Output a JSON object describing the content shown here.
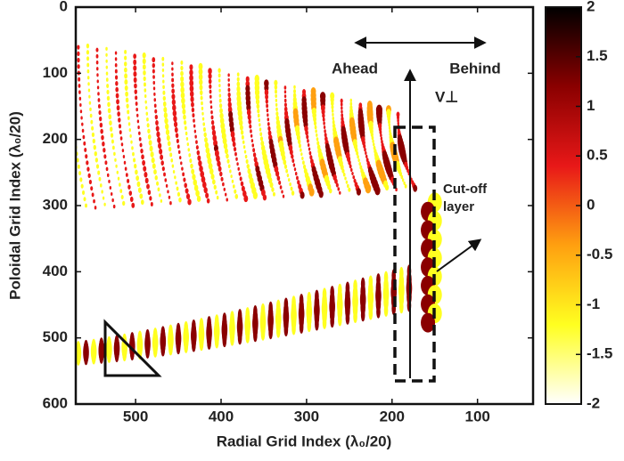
{
  "chart_data": {
    "type": "heatmap",
    "xlabel": "Radial Grid Index (λ₀/20)",
    "ylabel": "Poloidal Grid Index (λ₀/20)",
    "xlim": [
      570,
      35
    ],
    "xticks": [
      500,
      400,
      300,
      200,
      100
    ],
    "ylim": [
      0,
      600
    ],
    "yticks": [
      0,
      100,
      200,
      300,
      400,
      500,
      600
    ],
    "clim": [
      -2,
      2
    ],
    "cticks": [
      -2,
      -1.5,
      -1,
      -0.5,
      0,
      0.5,
      1,
      1.5,
      2
    ],
    "colormap": [
      "#ffffff",
      "#ffff20",
      "#ffa010",
      "#e81818",
      "#8a0000",
      "#000000"
    ],
    "annotations": [
      "Ahead",
      "Behind",
      "V⊥",
      "Cut-off",
      "layer"
    ]
  }
}
